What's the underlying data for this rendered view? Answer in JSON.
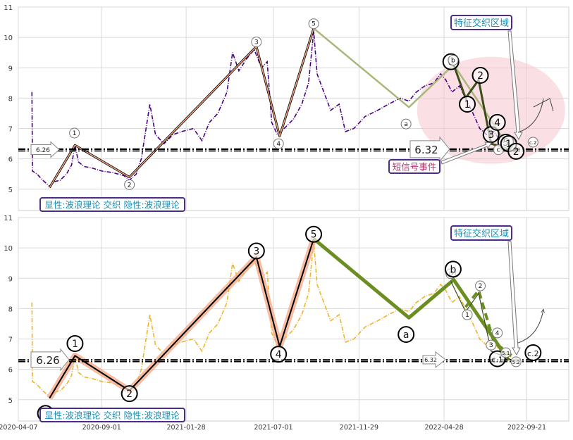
{
  "chart_data": [
    {
      "type": "line",
      "panel": "top",
      "ylim": [
        4.3,
        11
      ],
      "y_ticks": [
        5,
        6,
        7,
        8,
        9,
        10,
        11
      ],
      "grid": true,
      "price_series": {
        "color": "#4b0082",
        "style": "dash-dot",
        "points": [
          [
            "2020-05-01",
            8.2
          ],
          [
            "2020-05-02",
            5.6
          ],
          [
            "2020-05-10",
            5.5
          ],
          [
            "2020-05-20",
            5.3
          ],
          [
            "2020-06-01",
            5.1
          ],
          [
            "2020-06-10",
            5.25
          ],
          [
            "2020-06-20",
            5.3
          ],
          [
            "2020-07-01",
            5.5
          ],
          [
            "2020-07-10",
            5.8
          ],
          [
            "2020-07-16",
            6.45
          ],
          [
            "2020-07-22",
            5.9
          ],
          [
            "2020-08-01",
            5.75
          ],
          [
            "2020-08-15",
            5.7
          ],
          [
            "2020-09-01",
            5.6
          ],
          [
            "2020-09-20",
            5.55
          ],
          [
            "2020-10-10",
            5.45
          ],
          [
            "2020-10-20",
            5.3
          ],
          [
            "2020-11-01",
            5.5
          ],
          [
            "2020-11-10",
            6.0
          ],
          [
            "2020-11-25",
            7.8
          ],
          [
            "2020-12-05",
            6.8
          ],
          [
            "2020-12-20",
            6.5
          ],
          [
            "2021-01-05",
            6.8
          ],
          [
            "2021-01-20",
            6.9
          ],
          [
            "2021-02-10",
            7.0
          ],
          [
            "2021-02-25",
            6.6
          ],
          [
            "2021-03-10",
            7.2
          ],
          [
            "2021-03-25",
            7.5
          ],
          [
            "2021-04-10",
            8.2
          ],
          [
            "2021-04-20",
            9.5
          ],
          [
            "2021-05-01",
            8.9
          ],
          [
            "2021-05-15",
            9.3
          ],
          [
            "2021-05-28",
            9.6
          ],
          [
            "2021-06-10",
            9.0
          ],
          [
            "2021-06-20",
            9.2
          ],
          [
            "2021-06-28",
            7.2
          ],
          [
            "2021-07-08",
            6.8
          ],
          [
            "2021-07-20",
            7.0
          ],
          [
            "2021-08-05",
            7.3
          ],
          [
            "2021-08-20",
            7.8
          ],
          [
            "2021-09-01",
            8.5
          ],
          [
            "2021-09-10",
            10.2
          ],
          [
            "2021-09-16",
            8.8
          ],
          [
            "2021-09-28",
            8.2
          ],
          [
            "2021-10-10",
            7.6
          ],
          [
            "2021-10-25",
            7.8
          ],
          [
            "2021-11-05",
            6.9
          ],
          [
            "2021-11-20",
            7.0
          ],
          [
            "2021-12-10",
            7.4
          ],
          [
            "2022-01-01",
            7.6
          ],
          [
            "2022-01-20",
            7.8
          ],
          [
            "2022-02-10",
            8.0
          ],
          [
            "2022-02-25",
            7.9
          ],
          [
            "2022-03-10",
            8.2
          ],
          [
            "2022-03-25",
            8.4
          ],
          [
            "2022-04-10",
            8.5
          ],
          [
            "2022-04-22",
            8.8
          ],
          [
            "2022-05-01",
            8.6
          ],
          [
            "2022-05-12",
            8.2
          ],
          [
            "2022-05-25",
            8.4
          ],
          [
            "2022-06-05",
            8.0
          ],
          [
            "2022-06-18",
            7.5
          ],
          [
            "2022-06-30",
            7.0
          ],
          [
            "2022-07-12",
            6.8
          ],
          [
            "2022-07-25",
            6.9
          ],
          [
            "2022-08-05",
            6.6
          ],
          [
            "2022-08-15",
            6.5
          ],
          [
            "2022-08-25",
            6.4
          ]
        ]
      },
      "wave_lines": [
        {
          "name": "",
          "color": "#f4a582",
          "halo": "#000000",
          "width": 1.5,
          "points": [
            [
              "2020-06-01",
              5.05
            ],
            [
              "2020-07-16",
              6.45
            ],
            [
              "2020-10-20",
              5.4
            ],
            [
              "2021-06-01",
              9.7
            ],
            [
              "2021-07-12",
              6.75
            ],
            [
              "2021-09-10",
              10.3
            ]
          ]
        },
        {
          "name": "",
          "color": "#a8b87a",
          "width": 2.5,
          "points": [
            [
              "2021-09-10",
              10.3
            ],
            [
              "2022-02-25",
              7.7
            ],
            [
              "2022-05-15",
              9.1
            ],
            [
              "2022-08-20",
              6.4
            ]
          ]
        },
        {
          "name": "",
          "color": "#3d4d1a",
          "width": 3,
          "points": [
            [
              "2022-05-15",
              9.1
            ],
            [
              "2022-06-05",
              8.0
            ],
            [
              "2022-06-28",
              8.6
            ],
            [
              "2022-07-20",
              6.5
            ],
            [
              "2022-08-25",
              6.3
            ]
          ]
        }
      ],
      "wave_labels": [
        {
          "label": "0",
          "x": "2020-05-25",
          "y": 4.55,
          "size": "small"
        },
        {
          "label": "1",
          "x": "2020-07-15",
          "y": 6.85,
          "size": "small"
        },
        {
          "label": "2",
          "x": "2020-10-20",
          "y": 5.15,
          "size": "small"
        },
        {
          "label": "3",
          "x": "2021-06-01",
          "y": 9.85,
          "size": "small"
        },
        {
          "label": "4",
          "x": "2021-07-10",
          "y": 6.5,
          "size": "small"
        },
        {
          "label": "5",
          "x": "2021-09-10",
          "y": 10.45,
          "size": "small"
        },
        {
          "label": "a",
          "x": "2022-02-20",
          "y": 7.15,
          "size": "small"
        },
        {
          "label": "0",
          "x": "2022-05-10",
          "y": 9.2,
          "size": "large"
        },
        {
          "label": "b",
          "x": "2022-05-14",
          "y": 9.25,
          "size": "small"
        },
        {
          "label": "1",
          "x": "2022-06-08",
          "y": 7.8,
          "size": "large"
        },
        {
          "label": "2",
          "x": "2022-07-01",
          "y": 8.75,
          "size": "large"
        },
        {
          "label": "3",
          "x": "2022-07-20",
          "y": 6.8,
          "size": "large"
        },
        {
          "label": "4",
          "x": "2022-07-31",
          "y": 7.2,
          "size": "large"
        },
        {
          "label": "5",
          "x": "2022-08-15",
          "y": 6.55,
          "size": "large"
        },
        {
          "label": "c",
          "x": "2022-08-02",
          "y": 6.3,
          "size": "small"
        },
        {
          "label": "1",
          "x": "2022-08-20",
          "y": 6.5,
          "size": "large"
        },
        {
          "label": "2",
          "x": "2022-09-02",
          "y": 6.25,
          "size": "large"
        },
        {
          "label": "c.2",
          "x": "2022-10-02",
          "y": 6.55,
          "size": "small"
        }
      ],
      "hline": {
        "value": 6.32,
        "style": "dash-dot",
        "color": "#000000"
      },
      "left_value_label": "6.26",
      "right_value_label": "6.32",
      "annotations": {
        "feature_region": "特征交织区域",
        "short_signal": "短信号事件",
        "legend_text": "显性:波浪理论 交织 隐性:波浪理论"
      },
      "colors": {
        "feature_ellipse": "#f5c6cf",
        "annotation_text": "#1a8fb5",
        "annotation_border": "#4b2c8a",
        "short_signal_text": "#b0336a"
      }
    },
    {
      "type": "line",
      "panel": "bottom",
      "ylim": [
        4.3,
        11
      ],
      "y_ticks": [
        5,
        6,
        7,
        8,
        9,
        10,
        11
      ],
      "grid": true,
      "x_ticks": [
        "2020-04-07",
        "2020-09-01",
        "2021-01-28",
        "2021-07-01",
        "2021-11-29",
        "2022-04-28",
        "2022-09-21"
      ],
      "price_series": {
        "color": "#f0b429",
        "style": "dash-dot",
        "points": [
          [
            "2020-05-01",
            8.2
          ],
          [
            "2020-05-02",
            5.6
          ],
          [
            "2020-05-10",
            5.5
          ],
          [
            "2020-05-20",
            5.3
          ],
          [
            "2020-06-01",
            5.1
          ],
          [
            "2020-06-10",
            5.25
          ],
          [
            "2020-06-20",
            5.3
          ],
          [
            "2020-07-01",
            5.5
          ],
          [
            "2020-07-10",
            5.8
          ],
          [
            "2020-07-16",
            6.45
          ],
          [
            "2020-07-22",
            5.9
          ],
          [
            "2020-08-01",
            5.75
          ],
          [
            "2020-08-15",
            5.7
          ],
          [
            "2020-09-01",
            5.6
          ],
          [
            "2020-09-20",
            5.55
          ],
          [
            "2020-10-10",
            5.45
          ],
          [
            "2020-10-20",
            5.3
          ],
          [
            "2020-11-01",
            5.5
          ],
          [
            "2020-11-10",
            6.0
          ],
          [
            "2020-11-25",
            7.8
          ],
          [
            "2020-12-05",
            6.8
          ],
          [
            "2020-12-20",
            6.5
          ],
          [
            "2021-01-05",
            6.8
          ],
          [
            "2021-01-20",
            6.9
          ],
          [
            "2021-02-10",
            7.0
          ],
          [
            "2021-02-25",
            6.6
          ],
          [
            "2021-03-10",
            7.2
          ],
          [
            "2021-03-25",
            7.5
          ],
          [
            "2021-04-10",
            8.2
          ],
          [
            "2021-04-20",
            9.5
          ],
          [
            "2021-05-01",
            8.9
          ],
          [
            "2021-05-15",
            9.3
          ],
          [
            "2021-05-28",
            9.6
          ],
          [
            "2021-06-10",
            9.0
          ],
          [
            "2021-06-20",
            9.2
          ],
          [
            "2021-06-28",
            7.2
          ],
          [
            "2021-07-08",
            6.8
          ],
          [
            "2021-07-20",
            7.0
          ],
          [
            "2021-08-05",
            7.3
          ],
          [
            "2021-08-20",
            7.8
          ],
          [
            "2021-09-01",
            8.5
          ],
          [
            "2021-09-10",
            10.2
          ],
          [
            "2021-09-16",
            8.8
          ],
          [
            "2021-09-28",
            8.2
          ],
          [
            "2021-10-10",
            7.6
          ],
          [
            "2021-10-25",
            7.8
          ],
          [
            "2021-11-05",
            6.9
          ],
          [
            "2021-11-20",
            7.0
          ],
          [
            "2021-12-10",
            7.4
          ],
          [
            "2022-01-01",
            7.6
          ],
          [
            "2022-01-20",
            7.8
          ],
          [
            "2022-02-10",
            8.0
          ],
          [
            "2022-02-25",
            7.9
          ],
          [
            "2022-03-10",
            8.2
          ],
          [
            "2022-03-25",
            8.4
          ],
          [
            "2022-04-10",
            8.5
          ],
          [
            "2022-04-22",
            8.8
          ],
          [
            "2022-05-01",
            8.6
          ],
          [
            "2022-05-12",
            8.2
          ],
          [
            "2022-05-25",
            8.4
          ],
          [
            "2022-06-05",
            8.0
          ],
          [
            "2022-06-18",
            7.5
          ],
          [
            "2022-06-30",
            7.0
          ],
          [
            "2022-07-12",
            6.8
          ],
          [
            "2022-07-25",
            6.9
          ],
          [
            "2022-08-05",
            6.6
          ],
          [
            "2022-08-15",
            6.5
          ],
          [
            "2022-08-25",
            6.4
          ]
        ]
      },
      "wave_lines": [
        {
          "name": "",
          "color": "#000000",
          "halo": "#f4a582",
          "width": 2,
          "points": [
            [
              "2020-06-01",
              5.05
            ],
            [
              "2020-07-16",
              6.45
            ],
            [
              "2020-10-20",
              5.3
            ],
            [
              "2021-06-01",
              9.7
            ],
            [
              "2021-07-12",
              6.75
            ],
            [
              "2021-09-10",
              10.3
            ]
          ]
        },
        {
          "name": "",
          "color": "#6b8e23",
          "width": 5,
          "points": [
            [
              "2021-09-10",
              10.3
            ],
            [
              "2022-02-25",
              7.7
            ],
            [
              "2022-05-15",
              8.95
            ],
            [
              "2022-08-20",
              6.3
            ]
          ]
        },
        {
          "name": "",
          "color": "#6b8e23",
          "width": 4,
          "dashed": true,
          "points": [
            [
              "2022-06-05",
              8.05
            ],
            [
              "2022-06-28",
              8.6
            ],
            [
              "2022-07-25",
              6.9
            ],
            [
              "2022-09-05",
              6.3
            ]
          ]
        },
        {
          "name": "",
          "color": "#3d4d1a",
          "width": 1.2,
          "points": [
            [
              "2022-05-10",
              8.9
            ],
            [
              "2022-06-05",
              7.9
            ],
            [
              "2022-06-28",
              8.5
            ],
            [
              "2022-07-20",
              6.6
            ],
            [
              "2022-09-02",
              6.25
            ]
          ]
        }
      ],
      "wave_labels": [
        {
          "label": "0",
          "x": "2020-05-25",
          "y": 4.55,
          "size": "large"
        },
        {
          "label": "1",
          "x": "2020-07-16",
          "y": 6.85,
          "size": "large"
        },
        {
          "label": "2",
          "x": "2020-10-20",
          "y": 5.2,
          "size": "large"
        },
        {
          "label": "3",
          "x": "2021-06-01",
          "y": 9.9,
          "size": "large"
        },
        {
          "label": "4",
          "x": "2021-07-10",
          "y": 6.5,
          "size": "large"
        },
        {
          "label": "5",
          "x": "2021-09-10",
          "y": 10.45,
          "size": "large"
        },
        {
          "label": "a",
          "x": "2022-02-20",
          "y": 7.15,
          "size": "large"
        },
        {
          "label": "0",
          "x": "2022-05-10",
          "y": 9.15,
          "size": "small"
        },
        {
          "label": "b",
          "x": "2022-05-14",
          "y": 9.3,
          "size": "large"
        },
        {
          "label": "1",
          "x": "2022-06-08",
          "y": 7.8,
          "size": "small"
        },
        {
          "label": "2",
          "x": "2022-07-01",
          "y": 8.75,
          "size": "small"
        },
        {
          "label": "3",
          "x": "2022-07-20",
          "y": 6.8,
          "size": "small"
        },
        {
          "label": "4",
          "x": "2022-07-31",
          "y": 7.2,
          "size": "small"
        },
        {
          "label": "c.1",
          "x": "2022-07-31",
          "y": 6.35,
          "size": "large"
        },
        {
          "label": "5.1",
          "x": "2022-08-15",
          "y": 6.55,
          "size": "small"
        },
        {
          "label": "5.2",
          "x": "2022-09-02",
          "y": 6.25,
          "size": "small"
        },
        {
          "label": "c.2",
          "x": "2022-10-02",
          "y": 6.55,
          "size": "large"
        }
      ],
      "hline": {
        "value": 6.26,
        "style": "dash-dot",
        "color": "#000000"
      },
      "left_value_label": "6.26",
      "right_value_label": "6.32",
      "annotations": {
        "feature_region": "特征交织区域",
        "legend_text": "显性:波浪理论 交织 隐性:波浪理论"
      },
      "colors": {
        "annotation_text": "#1a8fb5",
        "annotation_border": "#4b2c8a"
      }
    }
  ]
}
